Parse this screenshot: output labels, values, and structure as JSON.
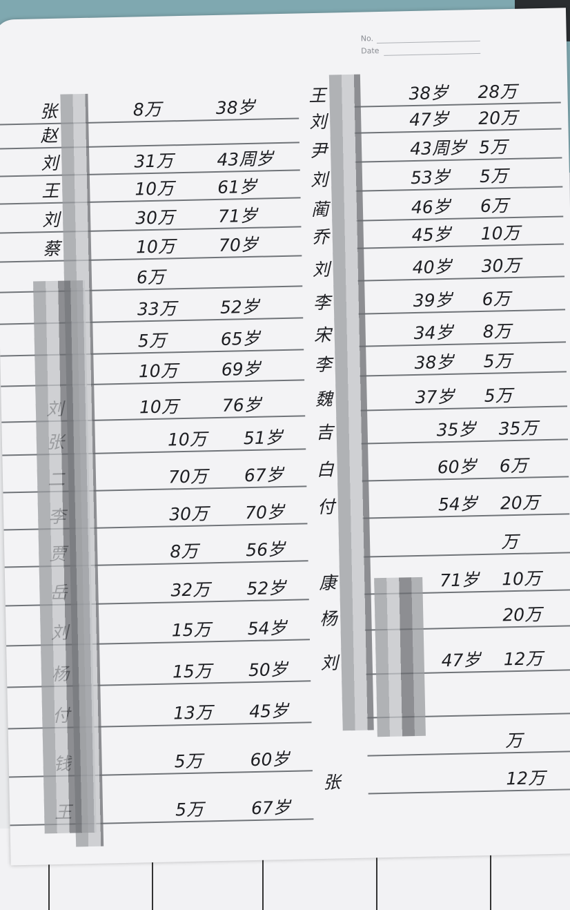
{
  "header": {
    "no_label": "No.",
    "date_label": "Date"
  },
  "left_entries": [
    {
      "name": "张",
      "amount": "8万",
      "age": "38岁"
    },
    {
      "name": "赵",
      "amount": "",
      "age": ""
    },
    {
      "name": "刘",
      "amount": "31万",
      "age": "43周岁"
    },
    {
      "name": "王",
      "amount": "10万",
      "age": "61岁"
    },
    {
      "name": "刘",
      "amount": "30万",
      "age": "71岁"
    },
    {
      "name": "蔡",
      "amount": "10万",
      "age": "70岁"
    },
    {
      "name": "",
      "amount": "6万",
      "age": ""
    },
    {
      "name": "",
      "amount": "33万",
      "age": "52岁"
    },
    {
      "name": "",
      "amount": "5万",
      "age": "65岁"
    },
    {
      "name": "",
      "amount": "10万",
      "age": "69岁"
    },
    {
      "name": "刘",
      "amount": "10万",
      "age": "76岁"
    },
    {
      "name": "张",
      "amount": "10万",
      "age": "51岁"
    },
    {
      "name": "二",
      "amount": "70万",
      "age": "67岁"
    },
    {
      "name": "李",
      "amount": "30万",
      "age": "70岁"
    },
    {
      "name": "贾",
      "amount": "8万",
      "age": "56岁"
    },
    {
      "name": "岳",
      "amount": "32万",
      "age": "52岁"
    },
    {
      "name": "刘",
      "amount": "15万",
      "age": "54岁"
    },
    {
      "name": "杨",
      "amount": "15万",
      "age": "50岁"
    },
    {
      "name": "付",
      "amount": "13万",
      "age": "45岁"
    },
    {
      "name": "钱",
      "amount": "5万",
      "age": "60岁"
    },
    {
      "name": "王",
      "amount": "5万",
      "age": "67岁"
    }
  ],
  "right_entries": [
    {
      "name": "王",
      "age": "38岁",
      "amount": "28万"
    },
    {
      "name": "刘",
      "age": "47岁",
      "amount": "20万"
    },
    {
      "name": "尹",
      "age": "43周岁",
      "amount": "5万"
    },
    {
      "name": "刘",
      "age": "53岁",
      "amount": "5万"
    },
    {
      "name": "蔺",
      "age": "46岁",
      "amount": "6万"
    },
    {
      "name": "乔",
      "age": "45岁",
      "amount": "10万"
    },
    {
      "name": "刘",
      "age": "40岁",
      "amount": "30万"
    },
    {
      "name": "李",
      "age": "39岁",
      "amount": "6万"
    },
    {
      "name": "宋",
      "age": "34岁",
      "amount": "8万"
    },
    {
      "name": "李",
      "age": "38岁",
      "amount": "5万"
    },
    {
      "name": "魏",
      "age": "37岁",
      "amount": "5万"
    },
    {
      "name": "吉",
      "age": "35岁",
      "amount": "35万"
    },
    {
      "name": "白",
      "age": "60岁",
      "amount": "6万"
    },
    {
      "name": "付",
      "age": "54岁",
      "amount": "20万"
    },
    {
      "name": "",
      "age": "",
      "amount": "万"
    },
    {
      "name": "康",
      "age": "71岁",
      "amount": "10万"
    },
    {
      "name": "杨",
      "age": "",
      "amount": "20万"
    },
    {
      "name": "刘",
      "age": "47岁",
      "amount": "12万"
    },
    {
      "name": "",
      "age": "",
      "amount": ""
    },
    {
      "name": "",
      "age": "",
      "amount": "万"
    },
    {
      "name": "张",
      "age": "",
      "amount": "12万"
    }
  ]
}
